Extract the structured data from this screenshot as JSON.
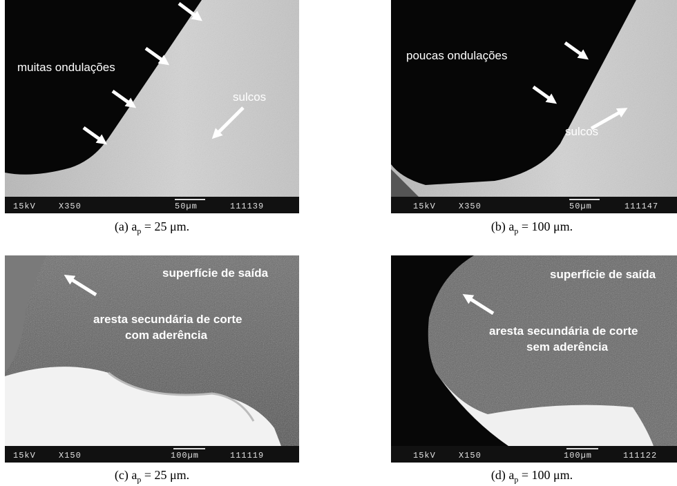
{
  "panels": [
    {
      "annotations": [
        "muitas ondulações",
        "sulcos"
      ],
      "info": {
        "voltage": "15kV",
        "magnification": "X350",
        "scale": "50µm",
        "id": "111139"
      },
      "caption": {
        "label": "(a) a",
        "subscript": "p",
        "value": " = 25 μm."
      }
    },
    {
      "annotations": [
        "poucas ondulações",
        "sulcos"
      ],
      "info": {
        "voltage": "15kV",
        "magnification": "X350",
        "scale": "50µm",
        "id": "111147"
      },
      "caption": {
        "label": "(b) a",
        "subscript": "p",
        "value": " = 100 μm."
      }
    },
    {
      "annotations": [
        "superfície de saída",
        "aresta secundária de corte",
        "com aderência"
      ],
      "info": {
        "voltage": "15kV",
        "magnification": "X150",
        "scale": "100µm",
        "id": "111119"
      },
      "caption": {
        "label": "(c) a",
        "subscript": "p",
        "value": " = 25 μm."
      }
    },
    {
      "annotations": [
        "superfície de saída",
        "aresta secundária de corte",
        "sem aderência"
      ],
      "info": {
        "voltage": "15kV",
        "magnification": "X150",
        "scale": "100µm",
        "id": "111122"
      },
      "caption": {
        "label": "(d) a",
        "subscript": "p",
        "value": " = 100 μm."
      }
    }
  ]
}
